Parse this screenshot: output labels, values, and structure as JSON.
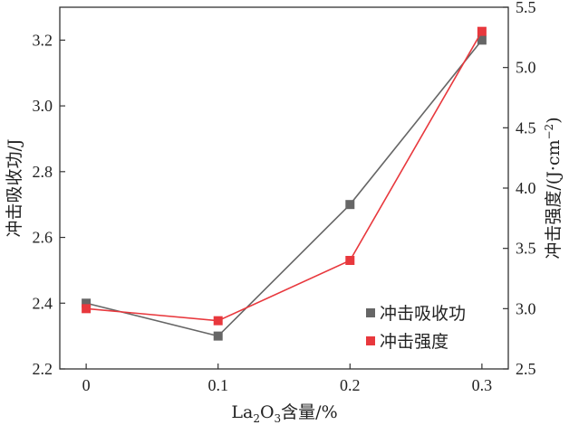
{
  "chart_data": {
    "type": "line",
    "x": [
      0,
      0.1,
      0.2,
      0.3
    ],
    "x_tick_labels": [
      "0",
      "0.1",
      "0.2",
      "0.3"
    ],
    "xlim": [
      -0.02,
      0.32
    ],
    "xlabel": {
      "base": "La",
      "sub1": "2",
      "mid": "O",
      "sub2": "3",
      "tail": "含量/%"
    },
    "left_axis": {
      "label": "冲击吸收功/J",
      "ylim": [
        2.2,
        3.3
      ],
      "ticks": [
        2.2,
        2.4,
        2.6,
        2.8,
        3.0,
        3.2
      ],
      "tick_labels": [
        "2.2",
        "2.4",
        "2.6",
        "2.8",
        "3.0",
        "3.2"
      ]
    },
    "right_axis": {
      "label_main": "冲击强度/(J·cm",
      "label_sup": "−2",
      "label_end": ")",
      "ylim": [
        2.5,
        5.5
      ],
      "ticks": [
        2.5,
        3.0,
        3.5,
        4.0,
        4.5,
        5.0,
        5.5
      ],
      "tick_labels": [
        "2.5",
        "3.0",
        "3.5",
        "4.0",
        "4.5",
        "5.0",
        "5.5"
      ]
    },
    "series": [
      {
        "name": "冲击吸收功",
        "axis": "left",
        "color": "#666666",
        "values": [
          2.4,
          2.3,
          2.7,
          3.2
        ]
      },
      {
        "name": "冲击强度",
        "axis": "right",
        "color": "#e8383d",
        "values": [
          3.0,
          2.9,
          3.4,
          5.3
        ]
      }
    ],
    "legend_position": "lower-right"
  }
}
